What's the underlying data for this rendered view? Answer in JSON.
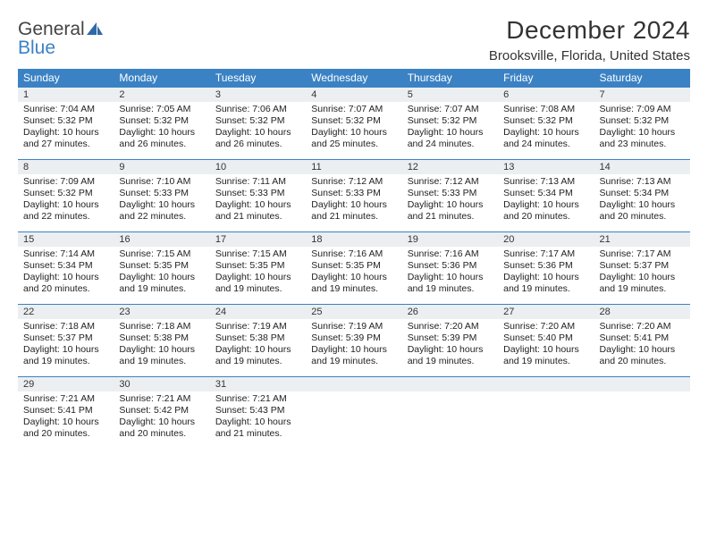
{
  "logo": {
    "word1": "General",
    "word2": "Blue"
  },
  "title": "December 2024",
  "location": "Brooksville, Florida, United States",
  "colors": {
    "header_bg": "#3b82c4",
    "header_text": "#ffffff",
    "daynum_bg": "#eceff1",
    "rule": "#3b82c4",
    "text": "#222222"
  },
  "day_headers": [
    "Sunday",
    "Monday",
    "Tuesday",
    "Wednesday",
    "Thursday",
    "Friday",
    "Saturday"
  ],
  "weeks": [
    {
      "nums": [
        "1",
        "2",
        "3",
        "4",
        "5",
        "6",
        "7"
      ],
      "cells": [
        {
          "sunrise": "Sunrise: 7:04 AM",
          "sunset": "Sunset: 5:32 PM",
          "day1": "Daylight: 10 hours",
          "day2": "and 27 minutes."
        },
        {
          "sunrise": "Sunrise: 7:05 AM",
          "sunset": "Sunset: 5:32 PM",
          "day1": "Daylight: 10 hours",
          "day2": "and 26 minutes."
        },
        {
          "sunrise": "Sunrise: 7:06 AM",
          "sunset": "Sunset: 5:32 PM",
          "day1": "Daylight: 10 hours",
          "day2": "and 26 minutes."
        },
        {
          "sunrise": "Sunrise: 7:07 AM",
          "sunset": "Sunset: 5:32 PM",
          "day1": "Daylight: 10 hours",
          "day2": "and 25 minutes."
        },
        {
          "sunrise": "Sunrise: 7:07 AM",
          "sunset": "Sunset: 5:32 PM",
          "day1": "Daylight: 10 hours",
          "day2": "and 24 minutes."
        },
        {
          "sunrise": "Sunrise: 7:08 AM",
          "sunset": "Sunset: 5:32 PM",
          "day1": "Daylight: 10 hours",
          "day2": "and 24 minutes."
        },
        {
          "sunrise": "Sunrise: 7:09 AM",
          "sunset": "Sunset: 5:32 PM",
          "day1": "Daylight: 10 hours",
          "day2": "and 23 minutes."
        }
      ]
    },
    {
      "nums": [
        "8",
        "9",
        "10",
        "11",
        "12",
        "13",
        "14"
      ],
      "cells": [
        {
          "sunrise": "Sunrise: 7:09 AM",
          "sunset": "Sunset: 5:32 PM",
          "day1": "Daylight: 10 hours",
          "day2": "and 22 minutes."
        },
        {
          "sunrise": "Sunrise: 7:10 AM",
          "sunset": "Sunset: 5:33 PM",
          "day1": "Daylight: 10 hours",
          "day2": "and 22 minutes."
        },
        {
          "sunrise": "Sunrise: 7:11 AM",
          "sunset": "Sunset: 5:33 PM",
          "day1": "Daylight: 10 hours",
          "day2": "and 21 minutes."
        },
        {
          "sunrise": "Sunrise: 7:12 AM",
          "sunset": "Sunset: 5:33 PM",
          "day1": "Daylight: 10 hours",
          "day2": "and 21 minutes."
        },
        {
          "sunrise": "Sunrise: 7:12 AM",
          "sunset": "Sunset: 5:33 PM",
          "day1": "Daylight: 10 hours",
          "day2": "and 21 minutes."
        },
        {
          "sunrise": "Sunrise: 7:13 AM",
          "sunset": "Sunset: 5:34 PM",
          "day1": "Daylight: 10 hours",
          "day2": "and 20 minutes."
        },
        {
          "sunrise": "Sunrise: 7:13 AM",
          "sunset": "Sunset: 5:34 PM",
          "day1": "Daylight: 10 hours",
          "day2": "and 20 minutes."
        }
      ]
    },
    {
      "nums": [
        "15",
        "16",
        "17",
        "18",
        "19",
        "20",
        "21"
      ],
      "cells": [
        {
          "sunrise": "Sunrise: 7:14 AM",
          "sunset": "Sunset: 5:34 PM",
          "day1": "Daylight: 10 hours",
          "day2": "and 20 minutes."
        },
        {
          "sunrise": "Sunrise: 7:15 AM",
          "sunset": "Sunset: 5:35 PM",
          "day1": "Daylight: 10 hours",
          "day2": "and 19 minutes."
        },
        {
          "sunrise": "Sunrise: 7:15 AM",
          "sunset": "Sunset: 5:35 PM",
          "day1": "Daylight: 10 hours",
          "day2": "and 19 minutes."
        },
        {
          "sunrise": "Sunrise: 7:16 AM",
          "sunset": "Sunset: 5:35 PM",
          "day1": "Daylight: 10 hours",
          "day2": "and 19 minutes."
        },
        {
          "sunrise": "Sunrise: 7:16 AM",
          "sunset": "Sunset: 5:36 PM",
          "day1": "Daylight: 10 hours",
          "day2": "and 19 minutes."
        },
        {
          "sunrise": "Sunrise: 7:17 AM",
          "sunset": "Sunset: 5:36 PM",
          "day1": "Daylight: 10 hours",
          "day2": "and 19 minutes."
        },
        {
          "sunrise": "Sunrise: 7:17 AM",
          "sunset": "Sunset: 5:37 PM",
          "day1": "Daylight: 10 hours",
          "day2": "and 19 minutes."
        }
      ]
    },
    {
      "nums": [
        "22",
        "23",
        "24",
        "25",
        "26",
        "27",
        "28"
      ],
      "cells": [
        {
          "sunrise": "Sunrise: 7:18 AM",
          "sunset": "Sunset: 5:37 PM",
          "day1": "Daylight: 10 hours",
          "day2": "and 19 minutes."
        },
        {
          "sunrise": "Sunrise: 7:18 AM",
          "sunset": "Sunset: 5:38 PM",
          "day1": "Daylight: 10 hours",
          "day2": "and 19 minutes."
        },
        {
          "sunrise": "Sunrise: 7:19 AM",
          "sunset": "Sunset: 5:38 PM",
          "day1": "Daylight: 10 hours",
          "day2": "and 19 minutes."
        },
        {
          "sunrise": "Sunrise: 7:19 AM",
          "sunset": "Sunset: 5:39 PM",
          "day1": "Daylight: 10 hours",
          "day2": "and 19 minutes."
        },
        {
          "sunrise": "Sunrise: 7:20 AM",
          "sunset": "Sunset: 5:39 PM",
          "day1": "Daylight: 10 hours",
          "day2": "and 19 minutes."
        },
        {
          "sunrise": "Sunrise: 7:20 AM",
          "sunset": "Sunset: 5:40 PM",
          "day1": "Daylight: 10 hours",
          "day2": "and 19 minutes."
        },
        {
          "sunrise": "Sunrise: 7:20 AM",
          "sunset": "Sunset: 5:41 PM",
          "day1": "Daylight: 10 hours",
          "day2": "and 20 minutes."
        }
      ]
    },
    {
      "nums": [
        "29",
        "30",
        "31",
        "",
        "",
        "",
        ""
      ],
      "cells": [
        {
          "sunrise": "Sunrise: 7:21 AM",
          "sunset": "Sunset: 5:41 PM",
          "day1": "Daylight: 10 hours",
          "day2": "and 20 minutes."
        },
        {
          "sunrise": "Sunrise: 7:21 AM",
          "sunset": "Sunset: 5:42 PM",
          "day1": "Daylight: 10 hours",
          "day2": "and 20 minutes."
        },
        {
          "sunrise": "Sunrise: 7:21 AM",
          "sunset": "Sunset: 5:43 PM",
          "day1": "Daylight: 10 hours",
          "day2": "and 21 minutes."
        },
        null,
        null,
        null,
        null
      ]
    }
  ]
}
